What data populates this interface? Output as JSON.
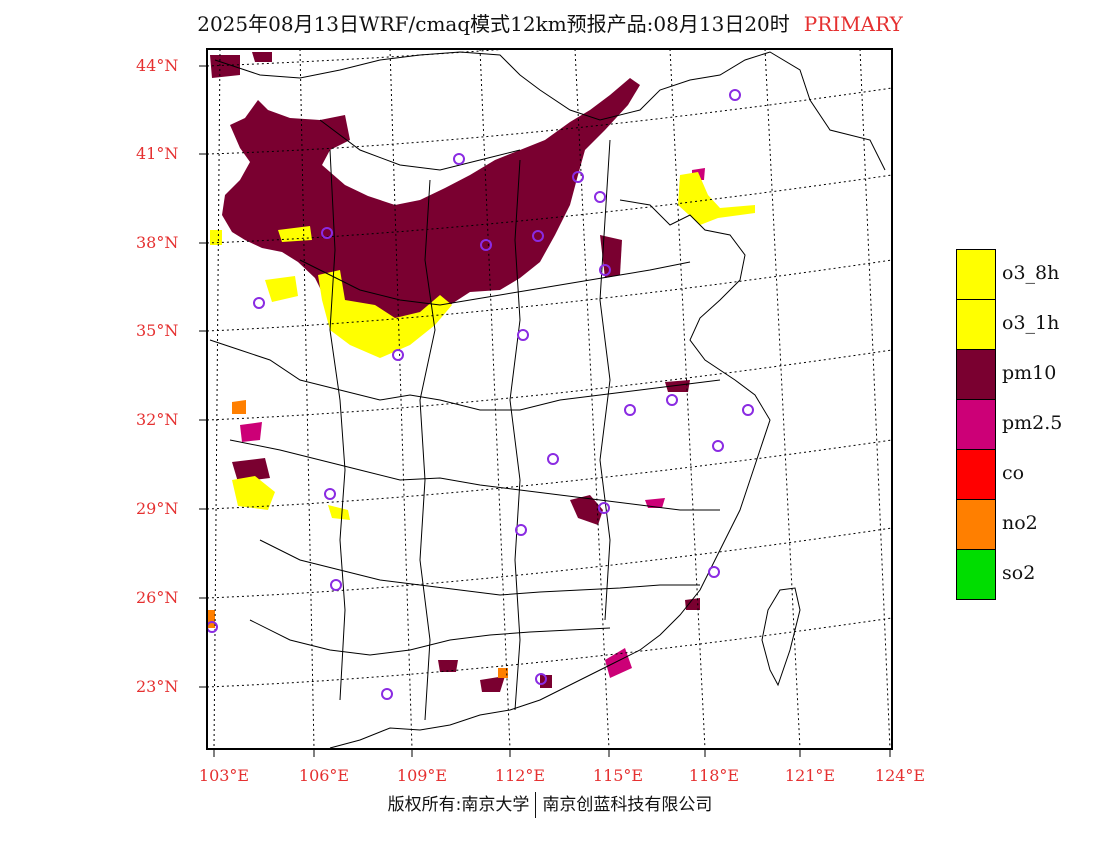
{
  "header": {
    "title": "2025年08月13日WRF/cmaq模式12km预报产品:08月13日20时",
    "tag": "PRIMARY"
  },
  "axes": {
    "latitudes": [
      "44°N",
      "41°N",
      "38°N",
      "35°N",
      "32°N",
      "29°N",
      "26°N",
      "23°N"
    ],
    "longitudes": [
      "103°E",
      "106°E",
      "109°E",
      "112°E",
      "115°E",
      "118°E",
      "121°E",
      "124°E"
    ]
  },
  "legend": {
    "items": [
      {
        "label": "o3_8h",
        "color": "#ffff00"
      },
      {
        "label": "o3_1h",
        "color": "#ffff00"
      },
      {
        "label": "pm10",
        "color": "#7a0030"
      },
      {
        "label": "pm2.5",
        "color": "#cc0077"
      },
      {
        "label": "co",
        "color": "#ff0000"
      },
      {
        "label": "no2",
        "color": "#ff7f00"
      },
      {
        "label": "so2",
        "color": "#00dd00"
      }
    ]
  },
  "footer": {
    "left": "版权所有:南京大学",
    "right": "南京创蓝科技有限公司"
  }
}
